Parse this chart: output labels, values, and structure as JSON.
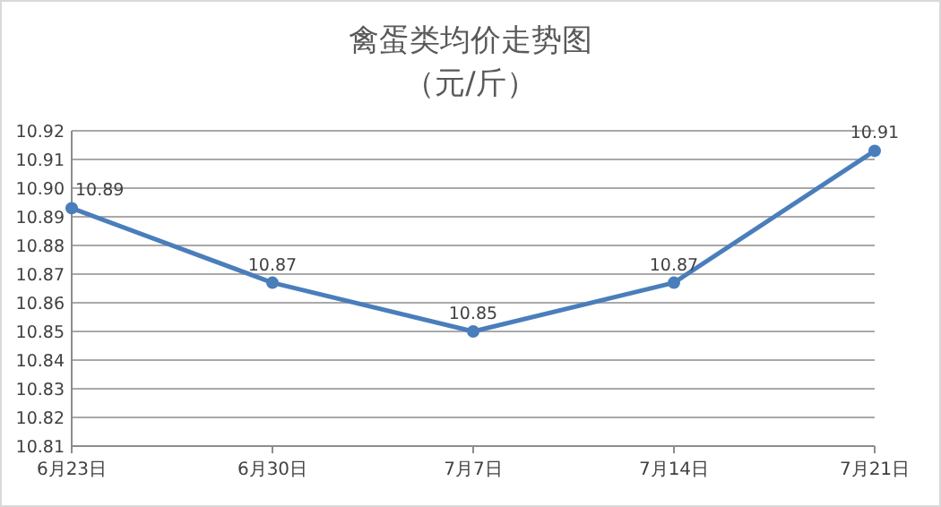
{
  "chart_data": {
    "type": "line",
    "title": "禽蛋类均价走势图",
    "subtitle": "（元/斤）",
    "categories": [
      "6月23日",
      "6月30日",
      "7月7日",
      "7月14日",
      "7月21日"
    ],
    "series": [
      {
        "color": "#4a7ebb",
        "values": [
          10.893,
          10.867,
          10.85,
          10.867,
          10.913
        ],
        "value_labels": [
          "10.89",
          "10.87",
          "10.85",
          "10.87",
          "10.91"
        ]
      }
    ],
    "ylim": [
      10.81,
      10.92
    ],
    "yticks": [
      10.81,
      10.82,
      10.83,
      10.84,
      10.85,
      10.86,
      10.87,
      10.88,
      10.89,
      {
        "value": 10.9,
        "label": "10.90"
      },
      10.91,
      10.92
    ],
    "grid": "y",
    "marker": "circle",
    "line_style": "solid"
  }
}
